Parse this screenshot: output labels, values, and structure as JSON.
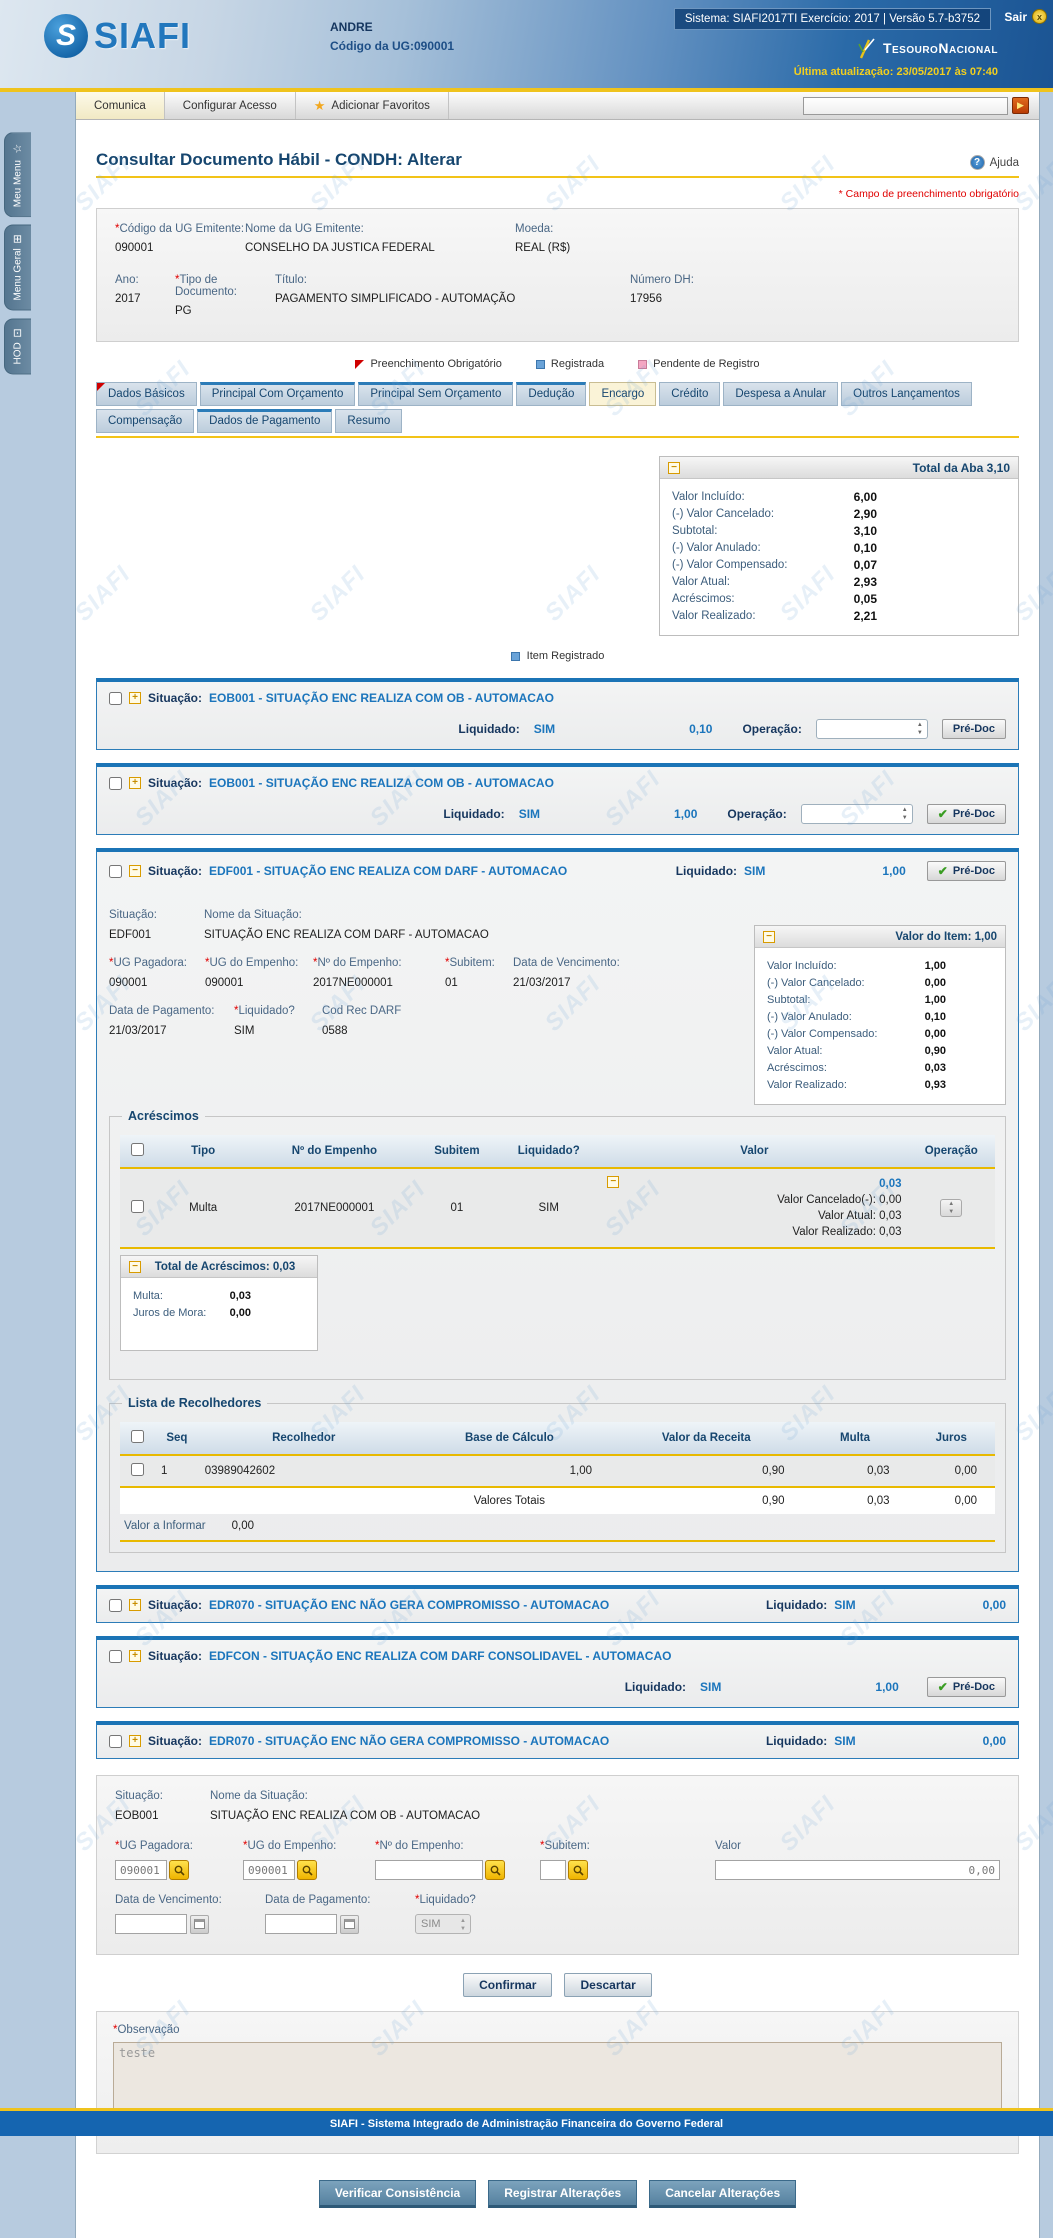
{
  "icons": {
    "required": "*",
    "collapse": "−",
    "expand": "+",
    "check": "✔",
    "help": "?",
    "star": "★",
    "go": "▶",
    "sair_x": "x",
    "registered_sq": "",
    "spinner": "▲\n▼"
  },
  "header": {
    "logo": "SIAFI",
    "logo_s": "S",
    "user": "ANDRE",
    "ug_label": "Código da UG:",
    "ug_value": "090001",
    "system_info": "Sistema: SIAFI2017TI Exercício: 2017 | Versão 5.7-b3752",
    "sair": "Sair",
    "brand": "TesouroNacional",
    "last_update": "Última atualização: 23/05/2017 às 07:40"
  },
  "menubar": {
    "comunica": "Comunica",
    "configurar": "Configurar Acesso",
    "favoritos": "Adicionar Favoritos"
  },
  "side_tabs": {
    "meu_menu": "Meu Menu",
    "menu_geral": "Menu Geral",
    "hod": "HOD"
  },
  "page": {
    "title": "Consultar Documento Hábil - CONDH: Alterar",
    "help": "Ajuda",
    "required_note": "* Campo de preenchimento obrigatório"
  },
  "doc": {
    "f1": {
      "label": "Código da UG Emitente:",
      "value": "090001"
    },
    "f2": {
      "label": "Nome da UG Emitente:",
      "value": "CONSELHO DA JUSTICA FEDERAL"
    },
    "f3": {
      "label": "Moeda:",
      "value": "REAL (R$)"
    },
    "f4": {
      "label": "Ano:",
      "value": "2017"
    },
    "f5": {
      "label": "Tipo de Documento:",
      "value": "PG"
    },
    "f6": {
      "label": "Título:",
      "value": "PAGAMENTO SIMPLIFICADO - AUTOMAÇÃO"
    },
    "f7": {
      "label": "Número DH:",
      "value": "17956"
    }
  },
  "legend": {
    "obrigatorio": "Preenchimento Obrigatório",
    "registrada": "Registrada",
    "pendente": "Pendente de Registro",
    "item_registrado": "Item Registrado"
  },
  "tabs": {
    "row1": [
      "Dados Básicos",
      "Principal Com Orçamento",
      "Principal Sem Orçamento",
      "Dedução",
      "Encargo",
      "Crédito",
      "Despesa a Anular",
      "Outros Lançamentos"
    ],
    "row2": [
      "Compensação",
      "Dados de Pagamento",
      "Resumo"
    ],
    "active": "Encargo"
  },
  "total_aba": {
    "title": "Total da Aba 3,10",
    "rows": [
      {
        "label": "Valor Incluído:",
        "value": "6,00"
      },
      {
        "label": "(-) Valor Cancelado:",
        "value": "2,90"
      },
      {
        "label": "Subtotal:",
        "value": "3,10"
      },
      {
        "label": "(-) Valor Anulado:",
        "value": "0,10"
      },
      {
        "label": "(-) Valor Compensado:",
        "value": "0,07"
      },
      {
        "label": "Valor Atual:",
        "value": "2,93"
      },
      {
        "label": "Acréscimos:",
        "value": "0,05"
      },
      {
        "label": "Valor Realizado:",
        "value": "2,21"
      }
    ]
  },
  "labels": {
    "situacao": "Situação:",
    "nome_situacao": "Nome da Situação:",
    "liquidado": "Liquidado:",
    "operacao": "Operação:",
    "predoc": "Pré-Doc"
  },
  "situations": [
    {
      "name": "EOB001 - SITUAÇÃO ENC REALIZA COM OB - AUTOMACAO",
      "liquidado": "SIM",
      "valor": "0,10"
    },
    {
      "name": "EOB001 - SITUAÇÃO ENC REALIZA COM OB - AUTOMACAO",
      "liquidado": "SIM",
      "valor": "1,00"
    },
    {
      "name": "EDF001 - SITUAÇÃO ENC REALIZA COM DARF - AUTOMACAO",
      "liquidado": "SIM",
      "valor": "1,00"
    },
    {
      "name": "EDR070 - SITUAÇÃO ENC NÃO GERA COMPROMISSO - AUTOMACAO",
      "liquidado": "SIM",
      "valor": "0,00"
    },
    {
      "name": "EDFCON - SITUAÇÃO ENC REALIZA COM DARF CONSOLIDAVEL - AUTOMACAO",
      "liquidado": "SIM",
      "valor": "1,00"
    },
    {
      "name": "EDR070 - SITUAÇÃO ENC NÃO GERA COMPROMISSO - AUTOMACAO",
      "liquidado": "SIM",
      "valor": "0,00"
    }
  ],
  "edf": {
    "code": "EDF001",
    "name": "SITUAÇÃO ENC REALIZA COM DARF - AUTOMACAO",
    "fields": {
      "ug_pagadora": {
        "label": "UG Pagadora:",
        "value": "090001"
      },
      "ug_empenho": {
        "label": "UG do Empenho:",
        "value": "090001"
      },
      "n_empenho": {
        "label": "Nº do Empenho:",
        "value": "2017NE000001"
      },
      "subitem": {
        "label": "Subitem:",
        "value": "01"
      },
      "venc": {
        "label": "Data de Vencimento:",
        "value": "21/03/2017"
      },
      "pag": {
        "label": "Data de Pagamento:",
        "value": "21/03/2017"
      },
      "liq": {
        "label": "Liquidado?",
        "value": "SIM"
      },
      "codrec": {
        "label": "Cod Rec DARF",
        "value": "0588"
      }
    },
    "valor_item": {
      "title": "Valor do Item: 1,00",
      "rows": [
        {
          "label": "Valor Incluído:",
          "value": "1,00"
        },
        {
          "label": "(-) Valor Cancelado:",
          "value": "0,00"
        },
        {
          "label": "Subtotal:",
          "value": "1,00"
        },
        {
          "label": "(-) Valor Anulado:",
          "value": "0,10"
        },
        {
          "label": "(-) Valor Compensado:",
          "value": "0,00"
        },
        {
          "label": "Valor Atual:",
          "value": "0,90"
        },
        {
          "label": "Acréscimos:",
          "value": "0,03"
        },
        {
          "label": "Valor Realizado:",
          "value": "0,93"
        }
      ]
    }
  },
  "acrescimos": {
    "legend": "Acréscimos",
    "headers": [
      "Tipo",
      "Nº do Empenho",
      "Subitem",
      "Liquidado?",
      "Valor",
      "Operação"
    ],
    "row": {
      "tipo": "Multa",
      "n_empenho": "2017NE000001",
      "subitem": "01",
      "liquidado": "SIM",
      "valor": "0,03",
      "linhas": [
        "Valor Cancelado(-): 0,00",
        "Valor Atual: 0,03",
        "Valor Realizado: 0,03"
      ]
    },
    "total": {
      "title": "Total de Acréscimos: 0,03",
      "rows": [
        {
          "label": "Multa:",
          "value": "0,03"
        },
        {
          "label": "Juros de Mora:",
          "value": "0,00"
        }
      ]
    }
  },
  "recolhedores": {
    "legend": "Lista de Recolhedores",
    "headers": [
      "Seq",
      "Recolhedor",
      "Base de Cálculo",
      "Valor da Receita",
      "Multa",
      "Juros"
    ],
    "row": {
      "seq": "1",
      "recolhedor": "03989042602",
      "base": "1,00",
      "receita": "0,90",
      "multa": "0,03",
      "juros": "0,00"
    },
    "totais_label": "Valores Totais",
    "totais": {
      "receita": "0,90",
      "multa": "0,03",
      "juros": "0,00"
    },
    "valor_informar_label": "Valor a Informar",
    "valor_informar": "0,00"
  },
  "edit": {
    "code": "EOB001",
    "name": "SITUAÇÃO ENC REALIZA COM OB - AUTOMACAO",
    "ug_pagadora_label": "UG Pagadora:",
    "ug_pagadora": "090001",
    "ug_empenho_label": "UG do Empenho:",
    "ug_empenho": "090001",
    "n_empenho_label": "Nº do Empenho:",
    "n_empenho": "",
    "subitem_label": "Subitem:",
    "subitem": "",
    "valor_label": "Valor",
    "valor": "0,00",
    "venc_label": "Data de Vencimento:",
    "venc": "",
    "pag_label": "Data de Pagamento:",
    "pag": "",
    "liq_label": "Liquidado?",
    "liq": "SIM"
  },
  "observacao": {
    "label": "Observação",
    "value": "teste"
  },
  "buttons": {
    "confirmar": "Confirmar",
    "descartar": "Descartar",
    "verificar": "Verificar Consistência",
    "registrar": "Registrar Alterações",
    "cancelar": "Cancelar Alterações"
  },
  "footer": "SIAFI - Sistema Integrado de Administração Financeira do Governo Federal"
}
